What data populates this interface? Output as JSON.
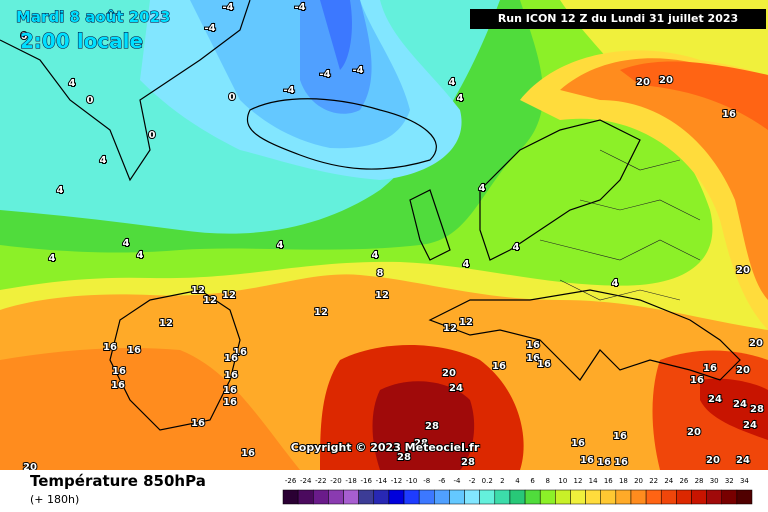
{
  "header": {
    "date": "Mardi 8 août 2023",
    "time": "2:00 locale",
    "run": "Run ICON 12 Z du Lundi 31 juillet 2023"
  },
  "copyright": "Copyright © 2023 Meteociel.fr",
  "footer": {
    "title": "Température 850hPa",
    "lead": "(+ 180h)"
  },
  "legend": {
    "labels": [
      "-26",
      "-24",
      "-22",
      "-20",
      "-18",
      "-16",
      "-14",
      "-12",
      "-10",
      "-8",
      "-6",
      "-4",
      "-2",
      "0.2",
      "2",
      "4",
      "6",
      "8",
      "10",
      "12",
      "14",
      "16",
      "18",
      "20",
      "22",
      "24",
      "26",
      "28",
      "30",
      "32",
      "34"
    ],
    "colors": [
      "#2a0033",
      "#4b0a5e",
      "#6a1b8a",
      "#8a3bb0",
      "#a75ed0",
      "#3c3c96",
      "#2828b4",
      "#0000dc",
      "#1e3cff",
      "#3c78ff",
      "#50a0ff",
      "#64c8ff",
      "#82e6ff",
      "#64f0dc",
      "#3cdcaa",
      "#28c878",
      "#50dc3c",
      "#8cf028",
      "#c8f028",
      "#f0f03c",
      "#ffdc3c",
      "#ffc832",
      "#ffaa28",
      "#ff8c1e",
      "#ff6414",
      "#f0460a",
      "#dc2800",
      "#c81400",
      "#a00a0a",
      "#780000",
      "#500000"
    ]
  },
  "map": {
    "labels": [
      "-4",
      "-4",
      "-4",
      "0",
      "-4",
      "-4",
      "-4",
      "0",
      "4",
      "0",
      "0",
      "4",
      "4",
      "4",
      "4",
      "4",
      "4",
      "4",
      "4",
      "4",
      "4",
      "8",
      "4",
      "4",
      "4",
      "12",
      "12",
      "12",
      "12",
      "12",
      "12",
      "12",
      "12",
      "16",
      "16",
      "16",
      "16",
      "16",
      "16",
      "16",
      "16",
      "16",
      "16",
      "16",
      "20",
      "20",
      "24",
      "28",
      "28",
      "28",
      "28",
      "16",
      "16",
      "16",
      "16",
      "20",
      "20",
      "16",
      "20",
      "20",
      "20",
      "16",
      "16",
      "24",
      "24",
      "28",
      "24",
      "20",
      "20",
      "24",
      "16",
      "16",
      "16",
      "16",
      "16"
    ]
  }
}
